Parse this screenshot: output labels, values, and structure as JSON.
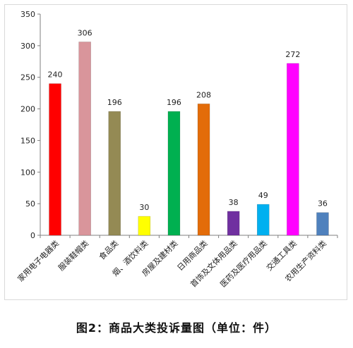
{
  "caption": "图2：商品大类投诉量图（单位：件）",
  "chart_data": {
    "type": "bar",
    "categories": [
      "家用电子电器类",
      "服装鞋帽类",
      "食品类",
      "烟、酒饮料类",
      "房屋及建材类",
      "日用商品类",
      "首饰及文体用品类",
      "医药及医疗用品类",
      "交通工具类",
      "农用生产资料类"
    ],
    "values": [
      240,
      306,
      196,
      30,
      196,
      208,
      38,
      49,
      272,
      36
    ],
    "colors": [
      "#ff0000",
      "#d9959b",
      "#948a54",
      "#ffff00",
      "#00b050",
      "#e36c09",
      "#7030a0",
      "#00b0f0",
      "#ff00ff",
      "#4f81bd"
    ],
    "ylim": [
      0,
      350
    ],
    "yticks": [
      0,
      50,
      100,
      150,
      200,
      250,
      300,
      350
    ],
    "grid": false,
    "legend": "none"
  }
}
